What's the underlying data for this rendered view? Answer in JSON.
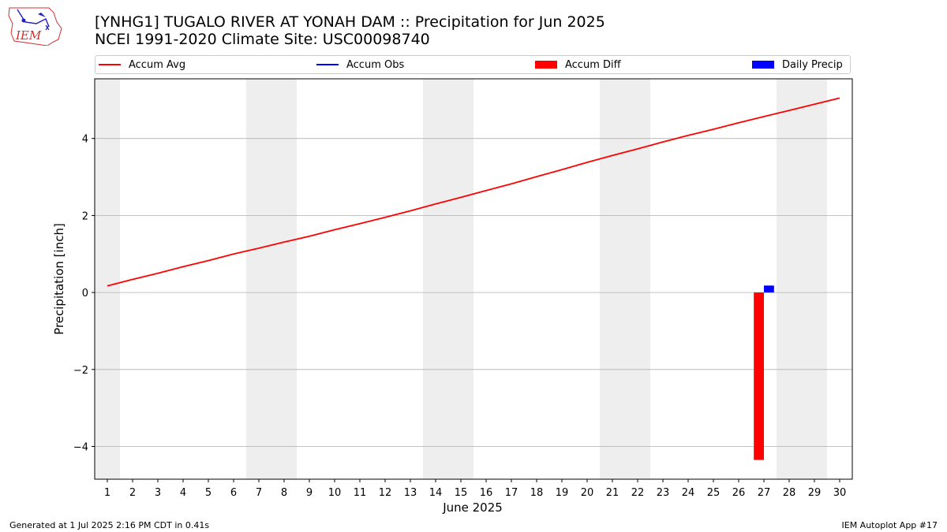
{
  "logo": {
    "text": "IEM"
  },
  "header": {
    "title_line1": "[YNHG1] TUGALO RIVER  AT YONAH DAM :: Precipitation for Jun 2025",
    "title_line2": "NCEI 1991-2020 Climate Site: USC00098740"
  },
  "footer": {
    "left": "Generated at 1 Jul 2025 2:16 PM CDT in 0.41s",
    "right": "IEM Autoplot App #17"
  },
  "colors": {
    "accum_avg": "#ff0000",
    "accum_obs": "#0000ff",
    "accum_diff": "#ff0000",
    "daily_precip": "#0000ff",
    "weekend_shade": "#eeeeee",
    "grid": "#b0b0b0"
  },
  "chart_data": {
    "type": "line",
    "xlabel": "June 2025",
    "ylabel": "Precipitation [inch]",
    "xlim": [
      0.5,
      30.5
    ],
    "ylim": [
      -4.85,
      5.55
    ],
    "x_ticks": [
      1,
      2,
      3,
      4,
      5,
      6,
      7,
      8,
      9,
      10,
      11,
      12,
      13,
      14,
      15,
      16,
      17,
      18,
      19,
      20,
      21,
      22,
      23,
      24,
      25,
      26,
      27,
      28,
      29,
      30
    ],
    "y_ticks": [
      -4,
      -2,
      0,
      2,
      4
    ],
    "y_tick_labels": [
      "−4",
      "−2",
      "0",
      "2",
      "4"
    ],
    "grid": "horizontal",
    "legend_position": "top",
    "weekend_days": [
      1,
      7,
      8,
      14,
      15,
      21,
      22,
      28,
      29
    ],
    "series": [
      {
        "name": "Accum Avg",
        "kind": "line",
        "x": [
          1,
          2,
          3,
          4,
          5,
          6,
          7,
          8,
          9,
          10,
          11,
          12,
          13,
          14,
          15,
          16,
          17,
          18,
          19,
          20,
          21,
          22,
          23,
          24,
          25,
          26,
          27,
          28,
          29,
          30
        ],
        "values": [
          0.17,
          0.34,
          0.5,
          0.67,
          0.83,
          1.0,
          1.15,
          1.31,
          1.46,
          1.63,
          1.79,
          1.95,
          2.12,
          2.3,
          2.47,
          2.65,
          2.82,
          3.01,
          3.19,
          3.38,
          3.56,
          3.73,
          3.91,
          4.08,
          4.24,
          4.41,
          4.57,
          4.73,
          4.89,
          5.05
        ]
      },
      {
        "name": "Accum Obs",
        "kind": "line",
        "x": [],
        "values": []
      },
      {
        "name": "Accum Diff",
        "kind": "bar",
        "x": [
          27
        ],
        "values": [
          -4.35
        ]
      },
      {
        "name": "Daily Precip",
        "kind": "bar",
        "x": [
          27
        ],
        "values": [
          0.18
        ]
      }
    ]
  }
}
